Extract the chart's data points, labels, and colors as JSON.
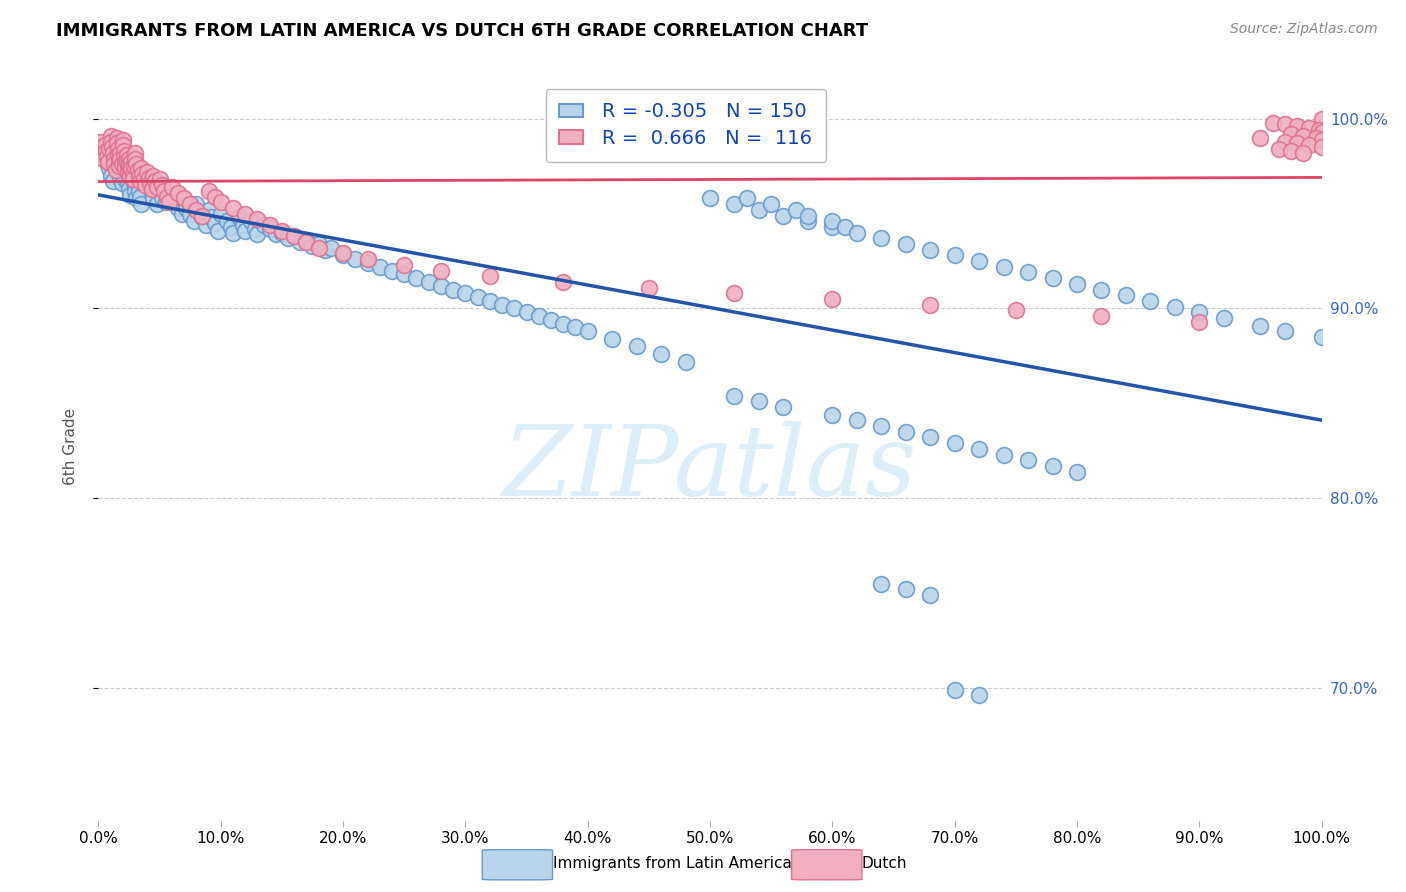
{
  "title": "IMMIGRANTS FROM LATIN AMERICA VS DUTCH 6TH GRADE CORRELATION CHART",
  "source": "Source: ZipAtlas.com",
  "ylabel": "6th Grade",
  "xlim": [
    0.0,
    1.0
  ],
  "ylim": [
    0.63,
    1.025
  ],
  "blue_R": -0.305,
  "blue_N": 150,
  "pink_R": 0.666,
  "pink_N": 116,
  "blue_face": "#b8d4ea",
  "blue_edge": "#6699cc",
  "pink_face": "#f0b0c0",
  "pink_edge": "#e07090",
  "trend_blue": "#2255aa",
  "trend_pink": "#dd4466",
  "watermark_text": "ZIPatlas",
  "legend_label_blue": "Immigrants from Latin America",
  "legend_label_pink": "Dutch",
  "ytick_labels_right": [
    "70.0%",
    "80.0%",
    "90.0%",
    "100.0%"
  ],
  "ytick_values_right": [
    0.7,
    0.8,
    0.9,
    1.0
  ],
  "xtick_labels": [
    "0.0%",
    "10.0%",
    "20.0%",
    "30.0%",
    "40.0%",
    "50.0%",
    "60.0%",
    "70.0%",
    "80.0%",
    "90.0%",
    "100.0%"
  ],
  "xtick_values": [
    0.0,
    0.1,
    0.2,
    0.3,
    0.4,
    0.5,
    0.6,
    0.7,
    0.8,
    0.9,
    1.0
  ],
  "blue_x": [
    0.005,
    0.007,
    0.009,
    0.01,
    0.012,
    0.015,
    0.017,
    0.018,
    0.019,
    0.02,
    0.02,
    0.021,
    0.022,
    0.024,
    0.025,
    0.026,
    0.027,
    0.028,
    0.029,
    0.03,
    0.031,
    0.032,
    0.033,
    0.034,
    0.035,
    0.04,
    0.042,
    0.044,
    0.045,
    0.048,
    0.05,
    0.052,
    0.055,
    0.06,
    0.062,
    0.065,
    0.068,
    0.07,
    0.072,
    0.075,
    0.078,
    0.08,
    0.082,
    0.085,
    0.088,
    0.09,
    0.092,
    0.095,
    0.098,
    0.1,
    0.105,
    0.108,
    0.11,
    0.115,
    0.118,
    0.12,
    0.125,
    0.128,
    0.13,
    0.135,
    0.14,
    0.145,
    0.15,
    0.155,
    0.16,
    0.165,
    0.17,
    0.175,
    0.18,
    0.185,
    0.19,
    0.2,
    0.21,
    0.22,
    0.23,
    0.24,
    0.25,
    0.26,
    0.27,
    0.28,
    0.29,
    0.3,
    0.31,
    0.32,
    0.33,
    0.34,
    0.35,
    0.36,
    0.37,
    0.38,
    0.39,
    0.4,
    0.42,
    0.44,
    0.46,
    0.48,
    0.5,
    0.52,
    0.54,
    0.56,
    0.58,
    0.6,
    0.52,
    0.54,
    0.56,
    0.6,
    0.62,
    0.64,
    0.66,
    0.68,
    0.7,
    0.72,
    0.74,
    0.76,
    0.78,
    0.8,
    0.53,
    0.55,
    0.57,
    0.58,
    0.6,
    0.61,
    0.62,
    0.64,
    0.66,
    0.68,
    0.7,
    0.72,
    0.74,
    0.76,
    0.78,
    0.8,
    0.82,
    0.84,
    0.86,
    0.88,
    0.9,
    0.92,
    0.95,
    0.97,
    1.0,
    0.64,
    0.66,
    0.68,
    0.7,
    0.72
  ],
  "blue_y": [
    0.98,
    0.977,
    0.974,
    0.97,
    0.967,
    0.975,
    0.972,
    0.969,
    0.966,
    0.978,
    0.975,
    0.972,
    0.968,
    0.966,
    0.963,
    0.96,
    0.973,
    0.97,
    0.966,
    0.962,
    0.958,
    0.965,
    0.962,
    0.959,
    0.955,
    0.968,
    0.965,
    0.961,
    0.958,
    0.955,
    0.963,
    0.959,
    0.956,
    0.96,
    0.956,
    0.953,
    0.95,
    0.957,
    0.953,
    0.95,
    0.946,
    0.955,
    0.951,
    0.948,
    0.944,
    0.952,
    0.948,
    0.945,
    0.941,
    0.95,
    0.946,
    0.943,
    0.94,
    0.948,
    0.944,
    0.941,
    0.946,
    0.942,
    0.939,
    0.944,
    0.942,
    0.939,
    0.94,
    0.937,
    0.938,
    0.935,
    0.936,
    0.933,
    0.934,
    0.931,
    0.932,
    0.928,
    0.926,
    0.924,
    0.922,
    0.92,
    0.918,
    0.916,
    0.914,
    0.912,
    0.91,
    0.908,
    0.906,
    0.904,
    0.902,
    0.9,
    0.898,
    0.896,
    0.894,
    0.892,
    0.89,
    0.888,
    0.884,
    0.88,
    0.876,
    0.872,
    0.958,
    0.955,
    0.952,
    0.949,
    0.946,
    0.943,
    0.854,
    0.851,
    0.848,
    0.844,
    0.841,
    0.838,
    0.835,
    0.832,
    0.829,
    0.826,
    0.823,
    0.82,
    0.817,
    0.814,
    0.958,
    0.955,
    0.952,
    0.949,
    0.946,
    0.943,
    0.94,
    0.937,
    0.934,
    0.931,
    0.928,
    0.925,
    0.922,
    0.919,
    0.916,
    0.913,
    0.91,
    0.907,
    0.904,
    0.901,
    0.898,
    0.895,
    0.891,
    0.888,
    0.885,
    0.755,
    0.752,
    0.749,
    0.699,
    0.696
  ],
  "pink_x": [
    0.001,
    0.002,
    0.003,
    0.004,
    0.005,
    0.006,
    0.007,
    0.008,
    0.009,
    0.01,
    0.01,
    0.011,
    0.012,
    0.013,
    0.013,
    0.014,
    0.015,
    0.015,
    0.016,
    0.016,
    0.017,
    0.017,
    0.018,
    0.018,
    0.019,
    0.02,
    0.02,
    0.021,
    0.021,
    0.022,
    0.022,
    0.023,
    0.023,
    0.024,
    0.024,
    0.025,
    0.025,
    0.026,
    0.026,
    0.027,
    0.027,
    0.028,
    0.028,
    0.029,
    0.03,
    0.03,
    0.031,
    0.032,
    0.033,
    0.034,
    0.035,
    0.036,
    0.037,
    0.038,
    0.04,
    0.041,
    0.042,
    0.044,
    0.045,
    0.046,
    0.048,
    0.05,
    0.052,
    0.054,
    0.056,
    0.058,
    0.06,
    0.065,
    0.07,
    0.075,
    0.08,
    0.085,
    0.09,
    0.095,
    0.1,
    0.11,
    0.12,
    0.13,
    0.14,
    0.15,
    0.16,
    0.17,
    0.18,
    0.2,
    0.22,
    0.25,
    0.28,
    0.32,
    0.38,
    0.45,
    0.52,
    0.6,
    0.68,
    0.75,
    0.82,
    0.9,
    0.95,
    0.98,
    1.0,
    0.96,
    0.97,
    0.98,
    0.99,
    0.998,
    1.0,
    0.975,
    0.985,
    0.995,
    1.0,
    0.97,
    0.98,
    0.99,
    1.0,
    0.965,
    0.975,
    0.985
  ],
  "pink_y": [
    0.988,
    0.985,
    0.982,
    0.979,
    0.986,
    0.983,
    0.98,
    0.977,
    0.984,
    0.991,
    0.988,
    0.985,
    0.982,
    0.979,
    0.976,
    0.973,
    0.99,
    0.987,
    0.984,
    0.981,
    0.978,
    0.975,
    0.982,
    0.979,
    0.976,
    0.989,
    0.986,
    0.983,
    0.98,
    0.977,
    0.974,
    0.981,
    0.978,
    0.975,
    0.972,
    0.979,
    0.976,
    0.973,
    0.97,
    0.977,
    0.974,
    0.971,
    0.968,
    0.975,
    0.982,
    0.979,
    0.976,
    0.973,
    0.97,
    0.967,
    0.974,
    0.971,
    0.968,
    0.965,
    0.972,
    0.969,
    0.966,
    0.963,
    0.97,
    0.967,
    0.964,
    0.968,
    0.965,
    0.962,
    0.959,
    0.956,
    0.964,
    0.961,
    0.958,
    0.955,
    0.952,
    0.949,
    0.962,
    0.959,
    0.956,
    0.953,
    0.95,
    0.947,
    0.944,
    0.941,
    0.938,
    0.935,
    0.932,
    0.929,
    0.926,
    0.923,
    0.92,
    0.917,
    0.914,
    0.911,
    0.908,
    0.905,
    0.902,
    0.899,
    0.896,
    0.893,
    0.99,
    0.995,
    1.0,
    0.998,
    0.997,
    0.996,
    0.995,
    0.994,
    0.993,
    0.992,
    0.991,
    0.99,
    0.989,
    0.988,
    0.987,
    0.986,
    0.985,
    0.984,
    0.983,
    0.982
  ]
}
